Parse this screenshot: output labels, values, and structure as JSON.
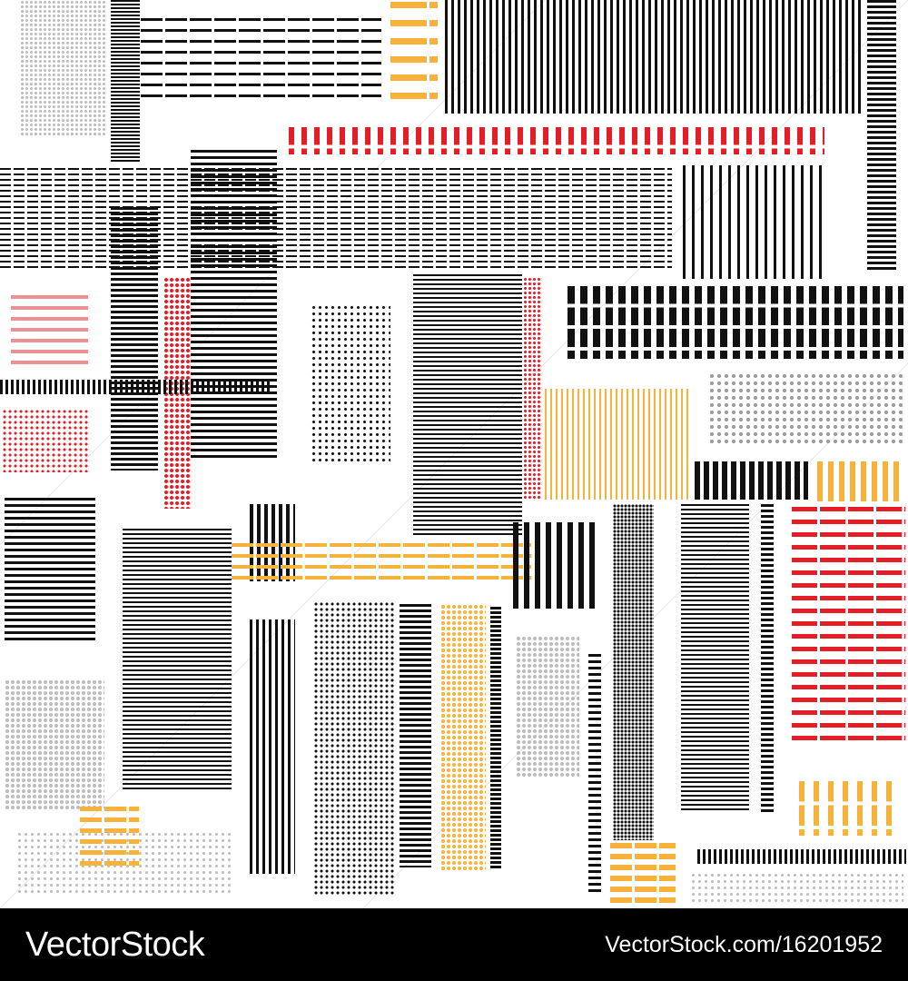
{
  "image": {
    "subject": "seamless pattern of striped and dotted rectangular blocks",
    "palette": {
      "black": "#111111",
      "gray": "#9a9a9a",
      "light": "#bdbdbd",
      "red": "#e41e26",
      "pink": "#ef8f94",
      "yellow": "#f7b23b"
    }
  },
  "footer": {
    "brand": "VectorStock",
    "credit": "VectorStock.com/16201952"
  }
}
